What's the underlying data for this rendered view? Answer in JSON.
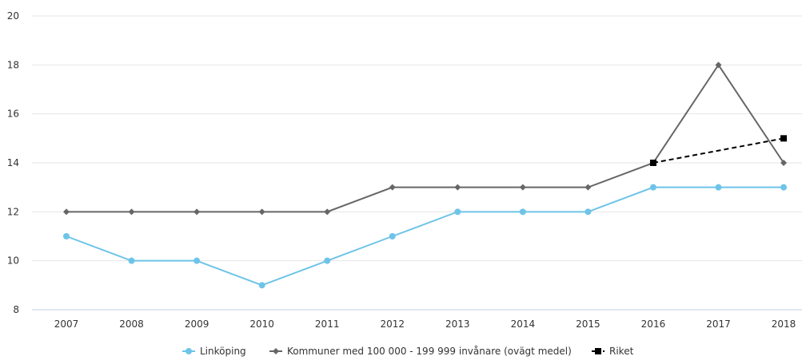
{
  "chart_data": {
    "type": "line",
    "title": "",
    "xlabel": "",
    "ylabel": "",
    "categories": [
      "2007",
      "2008",
      "2009",
      "2010",
      "2011",
      "2012",
      "2013",
      "2014",
      "2015",
      "2016",
      "2017",
      "2018"
    ],
    "ylim": [
      8,
      20
    ],
    "yticks": [
      8,
      10,
      12,
      14,
      16,
      18,
      20
    ],
    "grid": true,
    "legend_position": "bottom-center",
    "series": [
      {
        "name": "Linköping",
        "color": "#6ec4e8",
        "marker": "circle",
        "dash": "solid",
        "values": [
          11,
          10,
          10,
          9,
          10,
          11,
          12,
          12,
          12,
          13,
          13,
          13
        ]
      },
      {
        "name": "Kommuner med 100 000 - 199 999 invånare (ovägt medel)",
        "color": "#666666",
        "marker": "diamond",
        "dash": "solid",
        "values": [
          12,
          12,
          12,
          12,
          12,
          13,
          13,
          13,
          13,
          14,
          18,
          14
        ]
      },
      {
        "name": "Riket",
        "color": "#000000",
        "marker": "square",
        "dash": "dashed",
        "values": [
          null,
          null,
          null,
          null,
          null,
          null,
          null,
          null,
          null,
          14,
          null,
          15
        ]
      }
    ]
  }
}
